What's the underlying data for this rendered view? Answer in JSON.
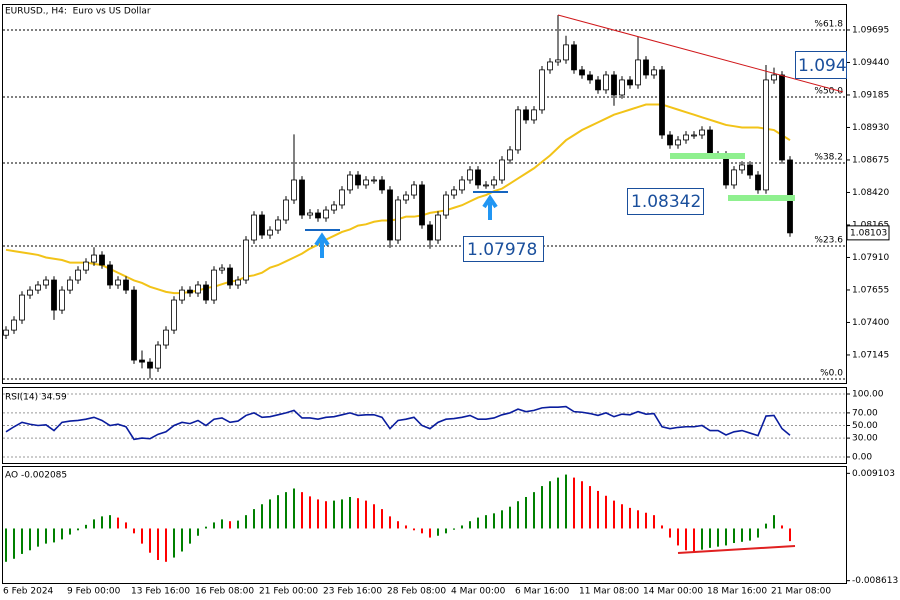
{
  "chart_data": [
    {
      "type": "candlestick",
      "title": "EURUSD., H4:  Euro vs US Dollar",
      "categories": [
        "6 Feb 2024",
        null,
        null,
        null,
        null,
        null,
        null,
        null,
        "9 Feb 00:00",
        null,
        null,
        null,
        null,
        null,
        null,
        null,
        "13 Feb 16:00",
        null,
        null,
        null,
        null,
        null,
        null,
        null,
        "16 Feb 08:00",
        null,
        null,
        null,
        null,
        null,
        null,
        null,
        "21 Feb 00:00",
        null,
        null,
        null,
        null,
        null,
        null,
        null,
        "23 Feb 16:00",
        null,
        null,
        null,
        null,
        null,
        null,
        null,
        "28 Feb 08:00",
        null,
        null,
        null,
        null,
        null,
        null,
        null,
        "4 Mar 00:00",
        null,
        null,
        null,
        null,
        null,
        null,
        null,
        "6 Mar 16:00",
        null,
        null,
        null,
        null,
        null,
        null,
        null,
        "11 Mar 08:00",
        null,
        null,
        null,
        null,
        null,
        null,
        null,
        "14 Mar 00:00",
        null,
        null,
        null,
        null,
        null,
        null,
        null,
        "18 Mar 16:00",
        null,
        null,
        null,
        null,
        null,
        null,
        null,
        "21 Mar 08:00",
        null,
        null
      ],
      "open": [
        1.073,
        1.0734,
        1.07419,
        1.07615,
        1.07654,
        1.07694,
        1.07733,
        1.07497,
        1.07654,
        1.07733,
        1.07811,
        1.07874,
        1.07929,
        1.07851,
        1.07694,
        1.07733,
        1.07654,
        1.07105,
        1.07089,
        1.07042,
        1.07223,
        1.0734,
        1.07576,
        1.07654,
        1.07631,
        1.07694,
        1.07576,
        1.07811,
        1.07827,
        1.07694,
        1.07733,
        1.08047,
        1.08243,
        1.08086,
        1.08125,
        1.08204,
        1.08361,
        1.08518,
        1.08243,
        1.08259,
        1.0822,
        1.08282,
        1.08322,
        1.0844,
        1.08557,
        1.08479,
        1.08518,
        1.08518,
        1.0844,
        1.08047,
        1.08361,
        1.084,
        1.08479,
        1.08165,
        1.08047,
        1.08243,
        1.084,
        1.0844,
        1.08518,
        1.08597,
        1.08479,
        1.08479,
        1.08518,
        1.08675,
        1.08754,
        1.09068,
        1.08989,
        1.09068,
        1.09382,
        1.09444,
        1.0946,
        1.09578,
        1.09382,
        1.09342,
        1.09303,
        1.09225,
        1.09342,
        1.09185,
        1.09303,
        1.09264,
        1.0946,
        1.09342,
        1.09382,
        1.08871,
        1.08793,
        1.08832,
        1.08871,
        1.08871,
        1.0891,
        1.08714,
        1.08714,
        1.08479,
        1.08597,
        1.08636,
        1.08557,
        1.0844,
        1.09303,
        1.09342,
        1.08675
      ],
      "high": [
        1.0737,
        1.07449,
        1.07645,
        1.07684,
        1.07724,
        1.07763,
        1.07763,
        1.07684,
        1.07763,
        1.07841,
        1.07904,
        1.0799,
        1.07959,
        1.07881,
        1.07763,
        1.07763,
        1.07684,
        1.0718,
        1.07119,
        1.07253,
        1.0737,
        1.07606,
        1.07684,
        1.07684,
        1.07724,
        1.07724,
        1.07841,
        1.07857,
        1.07857,
        1.07763,
        1.08077,
        1.08273,
        1.08273,
        1.08155,
        1.08234,
        1.08391,
        1.08876,
        1.08548,
        1.08289,
        1.08289,
        1.08312,
        1.08352,
        1.0847,
        1.08587,
        1.08587,
        1.08548,
        1.08548,
        1.08548,
        1.0847,
        1.08391,
        1.0843,
        1.08509,
        1.08509,
        1.08195,
        1.08273,
        1.0843,
        1.0847,
        1.08548,
        1.08627,
        1.08627,
        1.08509,
        1.08548,
        1.08705,
        1.08784,
        1.09098,
        1.09098,
        1.09098,
        1.09412,
        1.09474,
        1.09812,
        1.0965,
        1.09608,
        1.09412,
        1.09372,
        1.09333,
        1.09372,
        1.09372,
        1.09333,
        1.09333,
        1.0964,
        1.0949,
        1.09412,
        1.09412,
        1.08901,
        1.08862,
        1.08901,
        1.08901,
        1.0894,
        1.0894,
        1.08744,
        1.08744,
        1.08627,
        1.08666,
        1.08666,
        1.08587,
        1.0942,
        1.094,
        1.09372,
        1.08705
      ],
      "low": [
        1.0727,
        1.0731,
        1.07389,
        1.07585,
        1.07624,
        1.07664,
        1.0742,
        1.07467,
        1.07624,
        1.07703,
        1.07781,
        1.07844,
        1.07821,
        1.07664,
        1.07664,
        1.07624,
        1.07075,
        1.0704,
        1.0696,
        1.07012,
        1.07193,
        1.0731,
        1.07546,
        1.07601,
        1.07601,
        1.07546,
        1.07546,
        1.07781,
        1.07664,
        1.07664,
        1.07703,
        1.08017,
        1.08056,
        1.08056,
        1.08095,
        1.08174,
        1.08331,
        1.08213,
        1.08213,
        1.0819,
        1.0819,
        1.08252,
        1.08292,
        1.0841,
        1.08449,
        1.08449,
        1.08488,
        1.0841,
        1.07985,
        1.08017,
        1.08331,
        1.0837,
        1.08135,
        1.07978,
        1.08017,
        1.08213,
        1.0837,
        1.0841,
        1.08488,
        1.08449,
        1.08449,
        1.08449,
        1.08488,
        1.08645,
        1.08724,
        1.08959,
        1.08959,
        1.09038,
        1.09352,
        1.09414,
        1.0943,
        1.09352,
        1.09312,
        1.09273,
        1.09195,
        1.09195,
        1.091,
        1.09155,
        1.09234,
        1.09234,
        1.09312,
        1.09312,
        1.08841,
        1.08763,
        1.08763,
        1.08802,
        1.08841,
        1.08841,
        1.08684,
        1.08684,
        1.08449,
        1.08449,
        1.08567,
        1.08527,
        1.0841,
        1.0841,
        1.09273,
        1.08645,
        1.08073
      ],
      "close": [
        1.0734,
        1.07419,
        1.07615,
        1.07654,
        1.07694,
        1.07733,
        1.07497,
        1.07654,
        1.07733,
        1.07811,
        1.07874,
        1.07929,
        1.07851,
        1.07694,
        1.07733,
        1.07654,
        1.07105,
        1.07089,
        1.07042,
        1.07223,
        1.0734,
        1.07576,
        1.07654,
        1.07631,
        1.07694,
        1.07576,
        1.07811,
        1.07827,
        1.07694,
        1.07733,
        1.08047,
        1.08243,
        1.08086,
        1.08125,
        1.08204,
        1.08361,
        1.08518,
        1.08243,
        1.08259,
        1.0822,
        1.08282,
        1.08322,
        1.0844,
        1.08557,
        1.08479,
        1.08518,
        1.08518,
        1.0844,
        1.08047,
        1.08361,
        1.084,
        1.08479,
        1.08165,
        1.08047,
        1.08243,
        1.084,
        1.0844,
        1.08518,
        1.08597,
        1.08479,
        1.08479,
        1.08518,
        1.08675,
        1.08754,
        1.09068,
        1.08989,
        1.09068,
        1.09382,
        1.09444,
        1.0946,
        1.09578,
        1.09382,
        1.09342,
        1.09303,
        1.09225,
        1.09342,
        1.09185,
        1.09303,
        1.09264,
        1.0946,
        1.09342,
        1.09382,
        1.08871,
        1.08793,
        1.08832,
        1.08871,
        1.08871,
        1.0891,
        1.08714,
        1.08714,
        1.08479,
        1.08597,
        1.08636,
        1.08557,
        1.0844,
        1.09303,
        1.09342,
        1.08675,
        1.08103
      ],
      "up_color": "#ffffff",
      "down_color": "#000000",
      "lines": [
        {
          "color": "#f2c318",
          "values": [
            1.0797,
            1.0796,
            1.0795,
            1.0794,
            1.0793,
            1.0791,
            1.079,
            1.0789,
            1.0787,
            1.0787,
            1.0787,
            1.0786,
            1.0785,
            1.0782,
            1.0779,
            1.0776,
            1.0773,
            1.0771,
            1.0768,
            1.0766,
            1.0764,
            1.0763,
            1.0763,
            1.0764,
            1.0765,
            1.0767,
            1.0768,
            1.077,
            1.0772,
            1.0773,
            1.0776,
            1.0777,
            1.0779,
            1.0783,
            1.0785,
            1.0788,
            1.0791,
            1.0794,
            1.0798,
            1.0801,
            1.0805,
            1.0808,
            1.0811,
            1.0813,
            1.0816,
            1.0817,
            1.0819,
            1.082,
            1.082,
            1.0821,
            1.0823,
            1.0823,
            1.0824,
            1.0826,
            1.0827,
            1.0828,
            1.083,
            1.0832,
            1.0835,
            1.0838,
            1.084,
            1.0843,
            1.0845,
            1.0849,
            1.0853,
            1.0857,
            1.0861,
            1.0866,
            1.0871,
            1.0877,
            1.0883,
            1.0887,
            1.0891,
            1.0894,
            1.0897,
            1.09,
            1.0903,
            1.0905,
            1.0907,
            1.0909,
            1.0911,
            1.0911,
            1.0911,
            1.0909,
            1.0907,
            1.0905,
            1.0903,
            1.0901,
            1.0899,
            1.0897,
            1.0895,
            1.0894,
            1.0893,
            1.0893,
            1.0893,
            1.0892,
            1.0891,
            1.0887,
            1.0883
          ]
        }
      ],
      "levels": [
        {
          "value": 1.09695,
          "label": "%61.8"
        },
        {
          "value": 1.09169,
          "label": "%50.0"
        },
        {
          "value": 1.08651,
          "label": "%38.2"
        },
        {
          "value": 1.08,
          "label": "%23.6"
        },
        {
          "value": 1.06956,
          "label": "%0.0"
        }
      ],
      "annotations": [
        "1.094",
        "1.08342",
        "1.07978"
      ],
      "last_price": 1.08103,
      "ylim": [
        1.06925,
        1.09891
      ],
      "yticks": [
        1.09695,
        {
          "value": 1.0944,
          "label": "1.09440"
        },
        1.09185,
        {
          "value": 1.0893,
          "label": "1.08930"
        },
        1.08675,
        {
          "value": 1.0842,
          "label": "1.08420"
        },
        1.08165,
        {
          "value": 1.0791,
          "label": "1.07910"
        },
        1.07655,
        {
          "value": 1.074,
          "label": "1.07400"
        },
        1.07145
      ]
    },
    {
      "type": "line",
      "title": "RSI(14) 34.59",
      "color": "#0a1d9e",
      "values": [
        40,
        48,
        55,
        52,
        50,
        51,
        42,
        55,
        57,
        58,
        60,
        63,
        58,
        50,
        52,
        48,
        28,
        30,
        29,
        36,
        40,
        50,
        55,
        53,
        58,
        50,
        60,
        62,
        55,
        57,
        66,
        70,
        63,
        64,
        67,
        70,
        74,
        62,
        62,
        60,
        63,
        64,
        67,
        70,
        66,
        67,
        67,
        63,
        45,
        58,
        60,
        63,
        50,
        45,
        55,
        60,
        61,
        63,
        66,
        60,
        60,
        62,
        67,
        70,
        76,
        72,
        74,
        78,
        79,
        79,
        80,
        72,
        71,
        69,
        66,
        70,
        64,
        68,
        67,
        72,
        68,
        69,
        48,
        45,
        47,
        48,
        48,
        50,
        42,
        42,
        35,
        40,
        42,
        38,
        34,
        65,
        66,
        45,
        34.59
      ],
      "ylim": [
        -9.5,
        109.5
      ],
      "grid": true,
      "yticks": [
        {
          "value": 100,
          "label": "100.00"
        },
        {
          "value": 70,
          "label": "70.00"
        },
        {
          "value": 50,
          "label": "50.00"
        },
        {
          "value": 30,
          "label": "30.00"
        },
        {
          "value": 0,
          "label": "0.00"
        }
      ]
    },
    {
      "type": "bar",
      "title": "AO -0.002085",
      "up_color": "#008000",
      "down_color": "#ff0000",
      "values": [
        -0.0055,
        -0.005,
        -0.0042,
        -0.0036,
        -0.003,
        -0.0025,
        -0.0023,
        -0.0018,
        -0.001,
        -0.0003,
        0.0006,
        0.0015,
        0.002,
        0.0022,
        0.0018,
        0.001,
        -0.0008,
        -0.0025,
        -0.004,
        -0.0052,
        -0.0055,
        -0.0048,
        -0.0038,
        -0.0025,
        -0.0012,
        0.0003,
        0.001,
        0.0015,
        0.0012,
        0.0013,
        0.0022,
        0.0032,
        0.004,
        0.0048,
        0.0055,
        0.006,
        0.0066,
        0.006,
        0.0053,
        0.0048,
        0.0045,
        0.0046,
        0.0048,
        0.0052,
        0.005,
        0.0046,
        0.004,
        0.0032,
        0.002,
        0.0012,
        0.0005,
        -0.0003,
        -0.0008,
        -0.0015,
        -0.0012,
        -0.0008,
        -0.0002,
        0.0005,
        0.0012,
        0.0018,
        0.0022,
        0.0025,
        0.003,
        0.0036,
        0.0045,
        0.0052,
        0.006,
        0.007,
        0.0078,
        0.0084,
        0.0089,
        0.0084,
        0.0078,
        0.007,
        0.0062,
        0.0054,
        0.0046,
        0.004,
        0.0034,
        0.003,
        0.0026,
        0.0022,
        0.0005,
        -0.0015,
        -0.0028,
        -0.0036,
        -0.0038,
        -0.0035,
        -0.0032,
        -0.003,
        -0.0028,
        -0.0024,
        -0.0022,
        -0.002,
        -0.0015,
        0.0008,
        0.0022,
        0.0005,
        -0.002085
      ],
      "ylim": [
        -0.009,
        0.01015
      ],
      "yticks": [
        0.009103,
        -0.008613
      ]
    }
  ]
}
